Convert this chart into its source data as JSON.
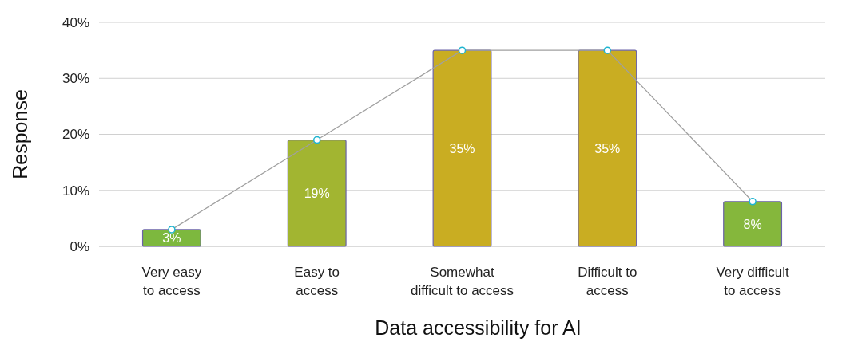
{
  "chart_data": {
    "type": "bar",
    "xlabel": "Data accessibility for AI",
    "ylabel": "Response",
    "categories": [
      "Very easy\nto access",
      "Easy to\naccess",
      "Somewhat\ndifficult to access",
      "Difficult to\naccess",
      "Very difficult\nto access"
    ],
    "series": [
      {
        "values": [
          3,
          19,
          35,
          35,
          8
        ],
        "value_labels": [
          "3%",
          "19%",
          "35%",
          "35%",
          "8%"
        ],
        "colors": [
          "#7db83e",
          "#a2b531",
          "#c9ad22",
          "#c9ad22",
          "#85b73c"
        ]
      },
      {
        "type": "line",
        "values": [
          3,
          19,
          35,
          35,
          8
        ],
        "color": "#a0a0a0",
        "marker": "circle"
      }
    ],
    "ylim": [
      0,
      40
    ],
    "yticks": [
      {
        "value": 0,
        "label": "0%"
      },
      {
        "value": 10,
        "label": "10%"
      },
      {
        "value": 20,
        "label": "20%"
      },
      {
        "value": 30,
        "label": "30%"
      },
      {
        "value": 40,
        "label": "40%"
      }
    ],
    "grid": "y"
  }
}
